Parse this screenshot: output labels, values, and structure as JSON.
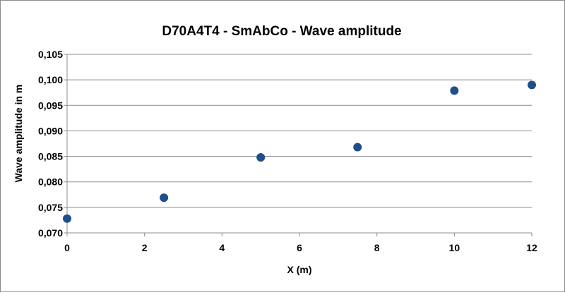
{
  "chart_data": {
    "type": "scatter",
    "title": "D70A4T4  - SmAbCo - Wave amplitude",
    "xlabel": "X (m)",
    "ylabel": "Wave amplitude in m",
    "xlim": [
      0,
      12
    ],
    "ylim": [
      0.07,
      0.105
    ],
    "x_ticks": [
      "0",
      "2",
      "4",
      "6",
      "8",
      "10",
      "12"
    ],
    "y_ticks": [
      "0,070",
      "0,075",
      "0,080",
      "0,085",
      "0,090",
      "0,095",
      "0,100",
      "0,105"
    ],
    "grid": "horizontal",
    "legend": "none",
    "marker_color": "#1f4e8c",
    "points": [
      {
        "x": 0,
        "y": 0.0728
      },
      {
        "x": 2.5,
        "y": 0.0769
      },
      {
        "x": 5,
        "y": 0.0848
      },
      {
        "x": 7.5,
        "y": 0.0868
      },
      {
        "x": 10,
        "y": 0.0979
      },
      {
        "x": 12,
        "y": 0.099
      }
    ]
  }
}
